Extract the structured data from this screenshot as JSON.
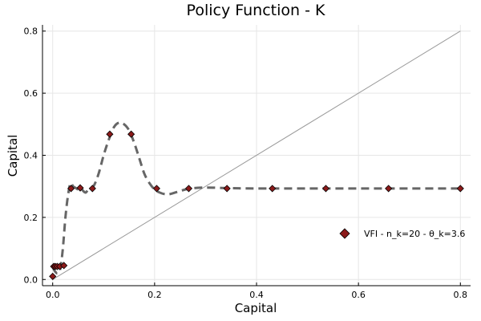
{
  "chart_data": {
    "type": "line",
    "title": "Policy Function - K",
    "xlabel": "Capital",
    "ylabel": "Capital",
    "xlim": [
      -0.02,
      0.82
    ],
    "ylim": [
      -0.02,
      0.82
    ],
    "xticks": [
      0.0,
      0.2,
      0.4,
      0.6,
      0.8
    ],
    "yticks": [
      0.0,
      0.2,
      0.4,
      0.6,
      0.8
    ],
    "xtick_labels": [
      "0.0",
      "0.2",
      "0.4",
      "0.6",
      "0.8"
    ],
    "ytick_labels": [
      "0.0",
      "0.2",
      "0.4",
      "0.6",
      "0.8"
    ],
    "grid": true,
    "legend_position": "right",
    "legend_entries": [
      "VFI - n_k=20 - θ_k=3.6"
    ],
    "series": [
      {
        "name": "VFI - n_k=20 - θ_k=3.6",
        "kind": "scatter",
        "marker": "diamond",
        "color": "#8b1a1a",
        "x": [
          0.0,
          0.002,
          0.005,
          0.009,
          0.014,
          0.022,
          0.036,
          0.054,
          0.078,
          0.112,
          0.154,
          0.204,
          0.267,
          0.342,
          0.431,
          0.536,
          0.659,
          0.8
        ],
        "y": [
          0.01,
          0.042,
          0.042,
          0.042,
          0.042,
          0.045,
          0.293,
          0.295,
          0.293,
          0.468,
          0.468,
          0.293,
          0.293,
          0.293,
          0.293,
          0.293,
          0.293,
          0.293
        ]
      },
      {
        "kind": "line",
        "style": "dashed",
        "color": "#666666",
        "x": [
          0.0,
          0.005,
          0.01,
          0.015,
          0.02,
          0.025,
          0.03,
          0.035,
          0.04,
          0.045,
          0.05,
          0.055,
          0.06,
          0.065,
          0.07,
          0.08,
          0.09,
          0.1,
          0.11,
          0.12,
          0.13,
          0.14,
          0.15,
          0.16,
          0.17,
          0.18,
          0.19,
          0.2,
          0.21,
          0.22,
          0.23,
          0.25,
          0.27,
          0.3,
          0.35,
          0.4,
          0.5,
          0.6,
          0.7,
          0.8
        ],
        "y": [
          0.04,
          0.025,
          0.02,
          0.035,
          0.1,
          0.2,
          0.27,
          0.31,
          0.3,
          0.295,
          0.29,
          0.295,
          0.285,
          0.28,
          0.29,
          0.3,
          0.34,
          0.4,
          0.45,
          0.49,
          0.505,
          0.5,
          0.48,
          0.44,
          0.39,
          0.34,
          0.31,
          0.29,
          0.28,
          0.275,
          0.275,
          0.285,
          0.293,
          0.296,
          0.294,
          0.293,
          0.293,
          0.293,
          0.293,
          0.293
        ]
      },
      {
        "kind": "line",
        "style": "solid",
        "color": "#999999",
        "x": [
          0.0,
          0.8
        ],
        "y": [
          0.0,
          0.8
        ]
      }
    ]
  }
}
